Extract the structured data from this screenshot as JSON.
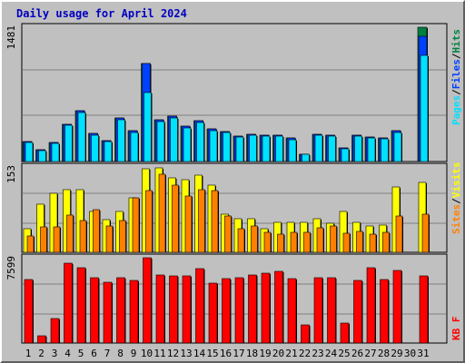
{
  "title": "Daily usage for April 2024",
  "colors": {
    "hits": "#008040",
    "files": "#0040ff",
    "pages": "#00e0ff",
    "visits": "#ffff00",
    "sites": "#ff8000",
    "kbytes": "#ff0000",
    "weekend": "#00805c",
    "panel": "#c0c0c0",
    "grid": "#808080"
  },
  "labels": {
    "pages": "Pages",
    "files": "Files",
    "hits": "Hits",
    "sites": "Sites",
    "visits": "Visits",
    "kbytes": "KB F",
    "sep": "/"
  },
  "chart_data": [
    {
      "type": "bar",
      "title": "Daily usage for April 2024",
      "categories": [
        "1",
        "2",
        "3",
        "4",
        "5",
        "6",
        "7",
        "8",
        "9",
        "10",
        "11",
        "12",
        "13",
        "14",
        "15",
        "16",
        "17",
        "18",
        "19",
        "20",
        "21",
        "22",
        "23",
        "24",
        "25",
        "26",
        "27",
        "28",
        "29",
        "30",
        "31"
      ],
      "weekend_days": [
        "6",
        "7",
        "13",
        "14",
        "20",
        "21",
        "27",
        "28"
      ],
      "ymax_label": "1481",
      "ylim": [
        0,
        1481
      ],
      "series": [
        {
          "name": "Hits",
          "values": [
            225,
            130,
            215,
            415,
            560,
            310,
            230,
            485,
            345,
            1080,
            460,
            505,
            395,
            450,
            365,
            335,
            280,
            300,
            290,
            290,
            260,
            85,
            300,
            295,
            155,
            295,
            275,
            260,
            340,
            0,
            1481
          ]
        },
        {
          "name": "Files",
          "values": [
            225,
            130,
            215,
            415,
            560,
            310,
            230,
            485,
            345,
            1080,
            460,
            505,
            395,
            450,
            365,
            335,
            280,
            300,
            290,
            290,
            260,
            85,
            300,
            295,
            155,
            295,
            275,
            260,
            340,
            0,
            1385
          ]
        },
        {
          "name": "Pages",
          "values": [
            215,
            125,
            205,
            400,
            540,
            295,
            220,
            465,
            325,
            760,
            440,
            480,
            375,
            430,
            345,
            320,
            270,
            290,
            280,
            280,
            245,
            80,
            290,
            285,
            145,
            280,
            265,
            250,
            325,
            0,
            1170
          ]
        }
      ]
    },
    {
      "type": "bar",
      "categories": [
        "1",
        "2",
        "3",
        "4",
        "5",
        "6",
        "7",
        "8",
        "9",
        "10",
        "11",
        "12",
        "13",
        "14",
        "15",
        "16",
        "17",
        "18",
        "19",
        "20",
        "21",
        "22",
        "23",
        "24",
        "25",
        "26",
        "27",
        "28",
        "29",
        "30",
        "31"
      ],
      "ymax_label": "153",
      "ylim": [
        0,
        153
      ],
      "series": [
        {
          "name": "Visits",
          "values": [
            43,
            87,
            106,
            113,
            112,
            73,
            59,
            73,
            97,
            150,
            152,
            133,
            131,
            139,
            120,
            69,
            60,
            61,
            42,
            54,
            53,
            53,
            60,
            52,
            73,
            53,
            47,
            49,
            117,
            0,
            125
          ]
        },
        {
          "name": "Sites",
          "values": [
            30,
            46,
            46,
            67,
            57,
            76,
            47,
            57,
            98,
            110,
            140,
            121,
            101,
            112,
            110,
            65,
            43,
            48,
            36,
            33,
            35,
            35,
            44,
            47,
            34,
            38,
            32,
            35,
            65,
            0,
            68
          ]
        }
      ]
    },
    {
      "type": "bar",
      "categories": [
        "1",
        "2",
        "3",
        "4",
        "5",
        "6",
        "7",
        "8",
        "9",
        "10",
        "11",
        "12",
        "13",
        "14",
        "15",
        "16",
        "17",
        "18",
        "19",
        "20",
        "21",
        "22",
        "23",
        "24",
        "25",
        "26",
        "27",
        "28",
        "29",
        "30",
        "31"
      ],
      "ymax_label": "7599",
      "ylim": [
        0,
        7599
      ],
      "series": [
        {
          "name": "KB F",
          "values": [
            5650,
            650,
            2150,
            7150,
            6750,
            5850,
            5450,
            5850,
            5550,
            7599,
            6050,
            5950,
            5950,
            6650,
            5350,
            5750,
            5850,
            6050,
            6250,
            6350,
            5750,
            1650,
            5850,
            5850,
            1750,
            5550,
            6750,
            5650,
            6450,
            0,
            5950
          ]
        }
      ]
    }
  ]
}
